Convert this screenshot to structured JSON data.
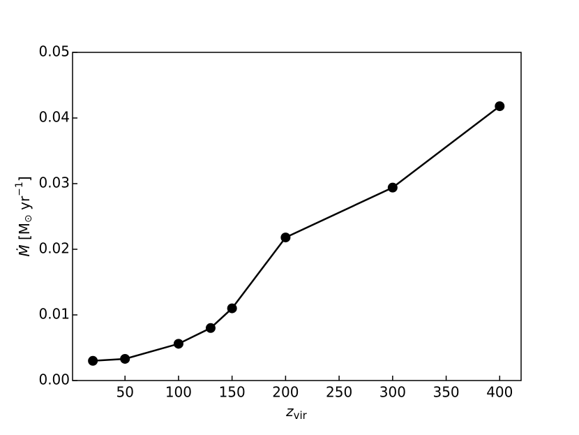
{
  "chart_data": {
    "type": "line",
    "xlabel": [
      "z",
      "vir"
    ],
    "ylabel": [
      "Ṁ",
      " [M",
      "⊙",
      " yr",
      "−1",
      "]"
    ],
    "x": [
      20,
      50,
      100,
      130,
      150,
      200,
      300,
      400
    ],
    "series": [
      {
        "color": "#000000",
        "values": [
          0.003,
          0.0033,
          0.0056,
          0.008,
          0.011,
          0.0218,
          0.0294,
          0.0418
        ]
      }
    ],
    "xlim": [
      1,
      420
    ],
    "ylim": [
      0,
      0.05
    ],
    "xticks": [
      50,
      100,
      150,
      200,
      250,
      300,
      350,
      400
    ],
    "yticks": [
      {
        "value": 0,
        "label": "0.00"
      },
      {
        "value": 0.01,
        "label": "0.01"
      },
      {
        "value": 0.02,
        "label": "0.02"
      },
      {
        "value": 0.03,
        "label": "0.03"
      },
      {
        "value": 0.04,
        "label": "0.04"
      },
      {
        "value": 0.05,
        "label": "0.05"
      }
    ],
    "markers": true
  }
}
